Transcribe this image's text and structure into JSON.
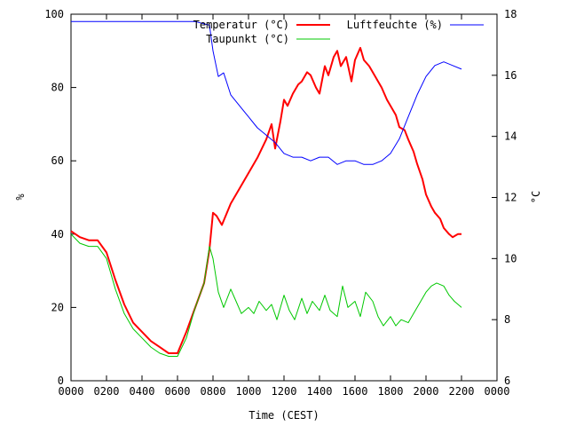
{
  "chart_data": {
    "type": "line",
    "title": "",
    "xlabel": "Time (CEST)",
    "ylabel_left": "%",
    "ylabel_right": "°C",
    "xlim": [
      0,
      24
    ],
    "ylim_left": [
      0,
      100
    ],
    "ylim_right": [
      6,
      18
    ],
    "grid": false,
    "legend_position": "top-right",
    "x_ticks": [
      0,
      2,
      4,
      6,
      8,
      10,
      12,
      14,
      16,
      18,
      20,
      22,
      24
    ],
    "x_tick_labels": [
      "0000",
      "0200",
      "0400",
      "0600",
      "0800",
      "1000",
      "1200",
      "1400",
      "1600",
      "1800",
      "2000",
      "2200",
      "0000"
    ],
    "y_left_ticks": [
      0,
      20,
      40,
      60,
      80,
      100
    ],
    "y_left_tick_labels": [
      "0",
      "20",
      "40",
      "60",
      "80",
      "100"
    ],
    "y_right_ticks": [
      6,
      8,
      10,
      12,
      14,
      16,
      18
    ],
    "y_right_tick_labels": [
      "6",
      "8",
      "10",
      "12",
      "14",
      "16",
      "18"
    ],
    "series": [
      {
        "name": "Temperatur (°C)",
        "axis": "right",
        "color": "#ff0000",
        "values": [
          [
            0,
            10.9
          ],
          [
            0.5,
            10.7
          ],
          [
            1.0,
            10.6
          ],
          [
            1.5,
            10.6
          ],
          [
            2.0,
            10.2
          ],
          [
            2.5,
            9.3
          ],
          [
            3.0,
            8.5
          ],
          [
            3.5,
            7.9
          ],
          [
            4.0,
            7.6
          ],
          [
            4.5,
            7.3
          ],
          [
            5.0,
            7.1
          ],
          [
            5.5,
            6.9
          ],
          [
            6.0,
            6.9
          ],
          [
            6.5,
            7.6
          ],
          [
            7.0,
            8.4
          ],
          [
            7.5,
            9.2
          ],
          [
            7.8,
            10.3
          ],
          [
            8.0,
            11.5
          ],
          [
            8.2,
            11.4
          ],
          [
            8.5,
            11.1
          ],
          [
            9.0,
            11.8
          ],
          [
            9.5,
            12.3
          ],
          [
            10.0,
            12.8
          ],
          [
            10.5,
            13.3
          ],
          [
            11.0,
            13.9
          ],
          [
            11.3,
            14.4
          ],
          [
            11.5,
            13.6
          ],
          [
            11.8,
            14.5
          ],
          [
            12.0,
            15.2
          ],
          [
            12.2,
            15.0
          ],
          [
            12.5,
            15.4
          ],
          [
            12.8,
            15.7
          ],
          [
            13.0,
            15.8
          ],
          [
            13.3,
            16.1
          ],
          [
            13.5,
            16.0
          ],
          [
            13.8,
            15.6
          ],
          [
            14.0,
            15.4
          ],
          [
            14.3,
            16.3
          ],
          [
            14.5,
            16.0
          ],
          [
            14.8,
            16.6
          ],
          [
            15.0,
            16.8
          ],
          [
            15.2,
            16.3
          ],
          [
            15.5,
            16.6
          ],
          [
            15.8,
            15.8
          ],
          [
            16.0,
            16.5
          ],
          [
            16.3,
            16.9
          ],
          [
            16.5,
            16.5
          ],
          [
            16.8,
            16.3
          ],
          [
            17.0,
            16.1
          ],
          [
            17.3,
            15.8
          ],
          [
            17.5,
            15.6
          ],
          [
            17.8,
            15.2
          ],
          [
            18.0,
            15.0
          ],
          [
            18.3,
            14.7
          ],
          [
            18.5,
            14.3
          ],
          [
            18.8,
            14.2
          ],
          [
            19.0,
            13.9
          ],
          [
            19.3,
            13.5
          ],
          [
            19.5,
            13.1
          ],
          [
            19.8,
            12.6
          ],
          [
            20.0,
            12.1
          ],
          [
            20.3,
            11.7
          ],
          [
            20.5,
            11.5
          ],
          [
            20.8,
            11.3
          ],
          [
            21.0,
            11.0
          ],
          [
            21.3,
            10.8
          ],
          [
            21.5,
            10.7
          ],
          [
            21.8,
            10.8
          ],
          [
            22.0,
            10.8
          ]
        ]
      },
      {
        "name": "Luftfeuchte (%)",
        "axis": "left",
        "color": "#0000ff",
        "values": [
          [
            0,
            98
          ],
          [
            1,
            98
          ],
          [
            2,
            98
          ],
          [
            3,
            98
          ],
          [
            4,
            98
          ],
          [
            5,
            98
          ],
          [
            6,
            98
          ],
          [
            7,
            98
          ],
          [
            7.8,
            97
          ],
          [
            8.0,
            90
          ],
          [
            8.3,
            83
          ],
          [
            8.6,
            84
          ],
          [
            9.0,
            78
          ],
          [
            9.5,
            75
          ],
          [
            10.0,
            72
          ],
          [
            10.5,
            69
          ],
          [
            11.0,
            67
          ],
          [
            11.5,
            65
          ],
          [
            12.0,
            62
          ],
          [
            12.5,
            61
          ],
          [
            13.0,
            61
          ],
          [
            13.5,
            60
          ],
          [
            14.0,
            61
          ],
          [
            14.5,
            61
          ],
          [
            15.0,
            59
          ],
          [
            15.5,
            60
          ],
          [
            16.0,
            60
          ],
          [
            16.5,
            59
          ],
          [
            17.0,
            59
          ],
          [
            17.5,
            60
          ],
          [
            18.0,
            62
          ],
          [
            18.5,
            66
          ],
          [
            19.0,
            72
          ],
          [
            19.5,
            78
          ],
          [
            20.0,
            83
          ],
          [
            20.5,
            86
          ],
          [
            21.0,
            87
          ],
          [
            21.5,
            86
          ],
          [
            22.0,
            85
          ]
        ]
      },
      {
        "name": "Taupunkt (°C)",
        "axis": "right",
        "color": "#00c800",
        "values": [
          [
            0,
            10.8
          ],
          [
            0.5,
            10.5
          ],
          [
            1.0,
            10.4
          ],
          [
            1.5,
            10.4
          ],
          [
            2.0,
            10.0
          ],
          [
            2.5,
            9.0
          ],
          [
            3.0,
            8.2
          ],
          [
            3.5,
            7.7
          ],
          [
            4.0,
            7.4
          ],
          [
            4.5,
            7.1
          ],
          [
            5.0,
            6.9
          ],
          [
            5.5,
            6.8
          ],
          [
            6.0,
            6.8
          ],
          [
            6.5,
            7.4
          ],
          [
            7.0,
            8.4
          ],
          [
            7.5,
            9.2
          ],
          [
            7.8,
            10.4
          ],
          [
            8.0,
            10.0
          ],
          [
            8.3,
            8.9
          ],
          [
            8.6,
            8.4
          ],
          [
            9.0,
            9.0
          ],
          [
            9.3,
            8.6
          ],
          [
            9.6,
            8.2
          ],
          [
            10.0,
            8.4
          ],
          [
            10.3,
            8.2
          ],
          [
            10.6,
            8.6
          ],
          [
            11.0,
            8.3
          ],
          [
            11.3,
            8.5
          ],
          [
            11.6,
            8.0
          ],
          [
            12.0,
            8.8
          ],
          [
            12.3,
            8.3
          ],
          [
            12.6,
            8.0
          ],
          [
            13.0,
            8.7
          ],
          [
            13.3,
            8.2
          ],
          [
            13.6,
            8.6
          ],
          [
            14.0,
            8.3
          ],
          [
            14.3,
            8.8
          ],
          [
            14.6,
            8.3
          ],
          [
            15.0,
            8.1
          ],
          [
            15.3,
            9.1
          ],
          [
            15.6,
            8.4
          ],
          [
            16.0,
            8.6
          ],
          [
            16.3,
            8.1
          ],
          [
            16.6,
            8.9
          ],
          [
            17.0,
            8.6
          ],
          [
            17.3,
            8.1
          ],
          [
            17.6,
            7.8
          ],
          [
            18.0,
            8.1
          ],
          [
            18.3,
            7.8
          ],
          [
            18.6,
            8.0
          ],
          [
            19.0,
            7.9
          ],
          [
            19.3,
            8.2
          ],
          [
            19.6,
            8.5
          ],
          [
            20.0,
            8.9
          ],
          [
            20.3,
            9.1
          ],
          [
            20.6,
            9.2
          ],
          [
            21.0,
            9.1
          ],
          [
            21.3,
            8.8
          ],
          [
            21.6,
            8.6
          ],
          [
            22.0,
            8.4
          ]
        ]
      }
    ]
  }
}
